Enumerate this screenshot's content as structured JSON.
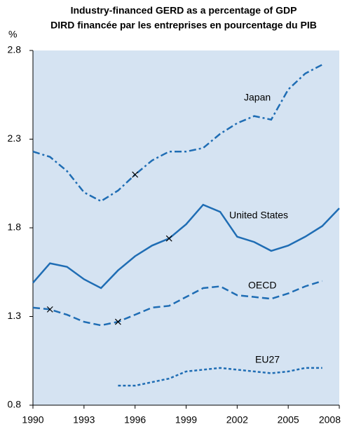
{
  "chart_data": {
    "type": "line",
    "title": "Industry-financed GERD as a percentage of GDP",
    "subtitle": "DIRD financée par les entreprises en pourcentage du PIB",
    "y_label": "%",
    "x": [
      1990,
      1991,
      1992,
      1993,
      1994,
      1995,
      1996,
      1997,
      1998,
      1999,
      2000,
      2001,
      2002,
      2003,
      2004,
      2005,
      2006,
      2007,
      2008
    ],
    "xlim": [
      1990,
      2008
    ],
    "xticks": [
      1990,
      1993,
      1996,
      1999,
      2002,
      2005,
      2008
    ],
    "ylim": [
      0.8,
      2.8
    ],
    "yticks": [
      0.8,
      1.3,
      1.8,
      2.3,
      2.8
    ],
    "grid": false,
    "series": [
      {
        "name": "Japan",
        "color": "#1f6db4",
        "dash": "dashdot",
        "breaks": [
          1996
        ],
        "values": [
          2.23,
          2.2,
          2.12,
          2.0,
          1.95,
          2.01,
          2.1,
          2.18,
          2.23,
          2.23,
          2.25,
          2.33,
          2.39,
          2.43,
          2.41,
          2.58,
          2.67,
          2.72,
          null
        ]
      },
      {
        "name": "United States",
        "color": "#1f6db4",
        "dash": "solid",
        "breaks": [
          1998
        ],
        "values": [
          1.49,
          1.6,
          1.58,
          1.51,
          1.46,
          1.56,
          1.64,
          1.7,
          1.74,
          1.82,
          1.93,
          1.89,
          1.75,
          1.72,
          1.67,
          1.7,
          1.75,
          1.81,
          1.91
        ]
      },
      {
        "name": "OECD",
        "color": "#1f6db4",
        "dash": "dashed",
        "breaks": [
          1991,
          1995
        ],
        "values": [
          1.35,
          1.34,
          1.31,
          1.27,
          1.25,
          1.27,
          1.31,
          1.35,
          1.36,
          1.41,
          1.46,
          1.47,
          1.42,
          1.41,
          1.4,
          1.43,
          1.47,
          1.5,
          null
        ]
      },
      {
        "name": "EU27",
        "color": "#1f6db4",
        "dash": "dotted",
        "breaks": [],
        "values": [
          null,
          null,
          null,
          null,
          null,
          0.91,
          0.91,
          0.93,
          0.95,
          0.99,
          1.0,
          1.01,
          1.0,
          0.99,
          0.98,
          0.99,
          1.01,
          1.01,
          null
        ]
      }
    ]
  }
}
